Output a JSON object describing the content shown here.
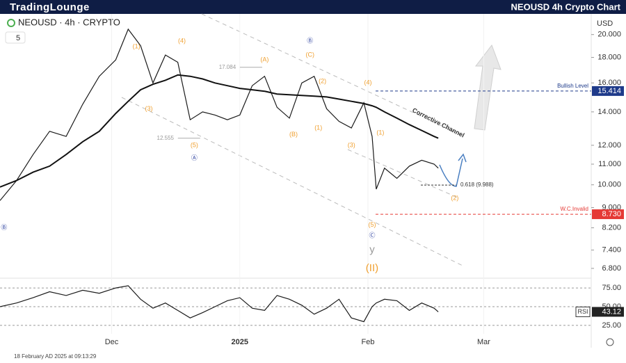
{
  "brand": "TradingLounge",
  "footer": "18 February AD 2025 at 09:13:29",
  "chart_data": [
    {
      "type": "line",
      "title": "NEOUSD 4h Crypto Chart",
      "symbol": "NEOUSD · 4h · CRYPTO",
      "interval_box": "5",
      "currency": "USD",
      "log_scale": true,
      "x": [
        "2024-11-04",
        "2024-11-08",
        "2024-11-12",
        "2024-11-16",
        "2024-11-20",
        "2024-11-24",
        "2024-11-28",
        "2024-12-02",
        "2024-12-05",
        "2024-12-08",
        "2024-12-11",
        "2024-12-14",
        "2024-12-17",
        "2024-12-20",
        "2024-12-23",
        "2024-12-26",
        "2024-12-29",
        "2025-01-01",
        "2025-01-04",
        "2025-01-07",
        "2025-01-10",
        "2025-01-13",
        "2025-01-16",
        "2025-01-19",
        "2025-01-22",
        "2025-01-25",
        "2025-01-28",
        "2025-01-31",
        "2025-02-02",
        "2025-02-03",
        "2025-02-05",
        "2025-02-08",
        "2025-02-11",
        "2025-02-14",
        "2025-02-17",
        "2025-02-18"
      ],
      "series": [
        {
          "color": "#1a1a1a",
          "values": [
            9.3,
            10.2,
            11.5,
            12.8,
            12.5,
            14.5,
            16.5,
            17.8,
            20.5,
            19.0,
            16.0,
            18.2,
            17.6,
            13.5,
            14.0,
            13.8,
            13.5,
            13.8,
            15.8,
            16.5,
            14.3,
            13.6,
            16.0,
            16.5,
            14.2,
            13.4,
            13.0,
            14.6,
            12.5,
            9.8,
            10.8,
            10.3,
            10.9,
            11.2,
            11.0,
            10.8
          ]
        },
        {
          "color": "#111111",
          "values": [
            9.9,
            10.2,
            10.6,
            10.9,
            11.5,
            12.2,
            12.8,
            13.9,
            14.7,
            15.5,
            15.9,
            16.2,
            16.6,
            16.5,
            16.3,
            16.0,
            15.8,
            15.6,
            15.5,
            15.4,
            15.2,
            15.15,
            15.1,
            15.05,
            15.0,
            14.85,
            14.7,
            14.55,
            14.4,
            14.3,
            14.0,
            13.6,
            13.2,
            12.85,
            12.5,
            12.4
          ]
        }
      ],
      "xlim": [
        "2024-11-04",
        "2025-03-27"
      ],
      "xticks": [
        {
          "value": "2024-12-01",
          "label": "Dec"
        },
        {
          "value": "2025-01-01",
          "label": "2025"
        },
        {
          "value": "2025-02-01",
          "label": "Feb"
        },
        {
          "value": "2025-03-01",
          "label": "Mar"
        }
      ],
      "ylim": [
        6.5,
        22
      ],
      "yticks": [
        {
          "value": 20,
          "label": "20.000"
        },
        {
          "value": 18,
          "label": "18.000"
        },
        {
          "value": 16,
          "label": "16.000"
        },
        {
          "value": 14,
          "label": "14.000"
        },
        {
          "value": 12,
          "label": "12.000"
        },
        {
          "value": 11,
          "label": "11.000"
        },
        {
          "value": 10,
          "label": "10.000"
        },
        {
          "value": 9,
          "label": "9.000"
        },
        {
          "value": 8.2,
          "label": "8.200"
        },
        {
          "value": 7.4,
          "label": "7.400"
        },
        {
          "value": 6.8,
          "label": "6.800"
        }
      ],
      "levels": [
        {
          "label": "Bullish Level",
          "value": 15.414,
          "color": "#1e3a8a"
        },
        {
          "label": "W.C.Invalid",
          "value": 8.73,
          "value_label": "8.730",
          "color": "#e53935"
        }
      ],
      "fib_level": {
        "label": "0.618 (9.988)",
        "value": 9.988
      },
      "channel_label": "Corrective Channel",
      "annotations": [
        {
          "label": "Ⓑ",
          "x": "2024-11-05",
          "y": 8.2,
          "color": "#2a3f9e"
        },
        {
          "label": "(1)",
          "x": "2024-12-07",
          "y": 18.9,
          "color": "#f0a030"
        },
        {
          "label": "(4)",
          "x": "2024-12-18",
          "y": 19.4,
          "color": "#f0a030"
        },
        {
          "label": "(3)",
          "x": "2024-12-10",
          "y": 14.2,
          "color": "#f0a030"
        },
        {
          "label": "12.555",
          "x": "2024-12-14",
          "y": 12.4,
          "color": "#999999"
        },
        {
          "label": "(5)",
          "x": "2024-12-21",
          "y": 12.0,
          "color": "#f0a030"
        },
        {
          "label": "Ⓐ",
          "x": "2024-12-21",
          "y": 11.3,
          "color": "#2a3f9e"
        },
        {
          "label": "17.084",
          "x": "2024-12-29",
          "y": 17.2,
          "color": "#999999"
        },
        {
          "label": "(A)",
          "x": "2025-01-07",
          "y": 17.8,
          "color": "#f0a030"
        },
        {
          "label": "(B)",
          "x": "2025-01-14",
          "y": 12.6,
          "color": "#f0a030"
        },
        {
          "label": "Ⓑ",
          "x": "2025-01-18",
          "y": 19.4,
          "color": "#2a3f9e"
        },
        {
          "label": "(C)",
          "x": "2025-01-18",
          "y": 18.2,
          "color": "#f0a030"
        },
        {
          "label": "(2)",
          "x": "2025-01-21",
          "y": 16.1,
          "color": "#f0a030"
        },
        {
          "label": "(1)",
          "x": "2025-01-20",
          "y": 13.0,
          "color": "#f0a030"
        },
        {
          "label": "(3)",
          "x": "2025-01-28",
          "y": 12.0,
          "color": "#f0a030"
        },
        {
          "label": "(4)",
          "x": "2025-02-01",
          "y": 16.0,
          "color": "#f0a030"
        },
        {
          "label": "(1)",
          "x": "2025-02-04",
          "y": 12.7,
          "color": "#f0a030"
        },
        {
          "label": "(5)",
          "x": "2025-02-02",
          "y": 8.3,
          "color": "#f0a030"
        },
        {
          "label": "Ⓒ",
          "x": "2025-02-02",
          "y": 7.9,
          "color": "#2a3f9e"
        },
        {
          "label": "y",
          "x": "2025-02-02",
          "y": 7.4,
          "color": "#999999"
        },
        {
          "label": "(II)",
          "x": "2025-02-02",
          "y": 6.8,
          "color": "#f0a030"
        },
        {
          "label": "(2)",
          "x": "2025-02-22",
          "y": 9.4,
          "color": "#f0a030"
        }
      ]
    },
    {
      "type": "line",
      "indicator": "RSI",
      "x": [
        "2024-11-04",
        "2024-11-08",
        "2024-11-12",
        "2024-11-16",
        "2024-11-20",
        "2024-11-24",
        "2024-11-28",
        "2024-12-02",
        "2024-12-05",
        "2024-12-08",
        "2024-12-11",
        "2024-12-14",
        "2024-12-17",
        "2024-12-20",
        "2024-12-23",
        "2024-12-26",
        "2024-12-29",
        "2025-01-01",
        "2025-01-04",
        "2025-01-07",
        "2025-01-10",
        "2025-01-13",
        "2025-01-16",
        "2025-01-19",
        "2025-01-22",
        "2025-01-25",
        "2025-01-28",
        "2025-01-31",
        "2025-02-02",
        "2025-02-03",
        "2025-02-05",
        "2025-02-08",
        "2025-02-11",
        "2025-02-14",
        "2025-02-17",
        "2025-02-18"
      ],
      "series": [
        {
          "color": "#1a1a1a",
          "values": [
            50,
            55,
            62,
            70,
            65,
            72,
            68,
            75,
            78,
            60,
            48,
            55,
            45,
            35,
            42,
            50,
            58,
            62,
            48,
            45,
            65,
            60,
            52,
            40,
            48,
            60,
            35,
            30,
            50,
            55,
            60,
            58,
            45,
            55,
            48,
            43.12
          ]
        }
      ],
      "ylim": [
        17.5,
        83.5
      ],
      "yticks": [
        {
          "value": 75,
          "label": "75.00"
        },
        {
          "value": 50,
          "label": "50.00"
        },
        {
          "value": 25,
          "label": "25.00"
        }
      ]
    }
  ]
}
